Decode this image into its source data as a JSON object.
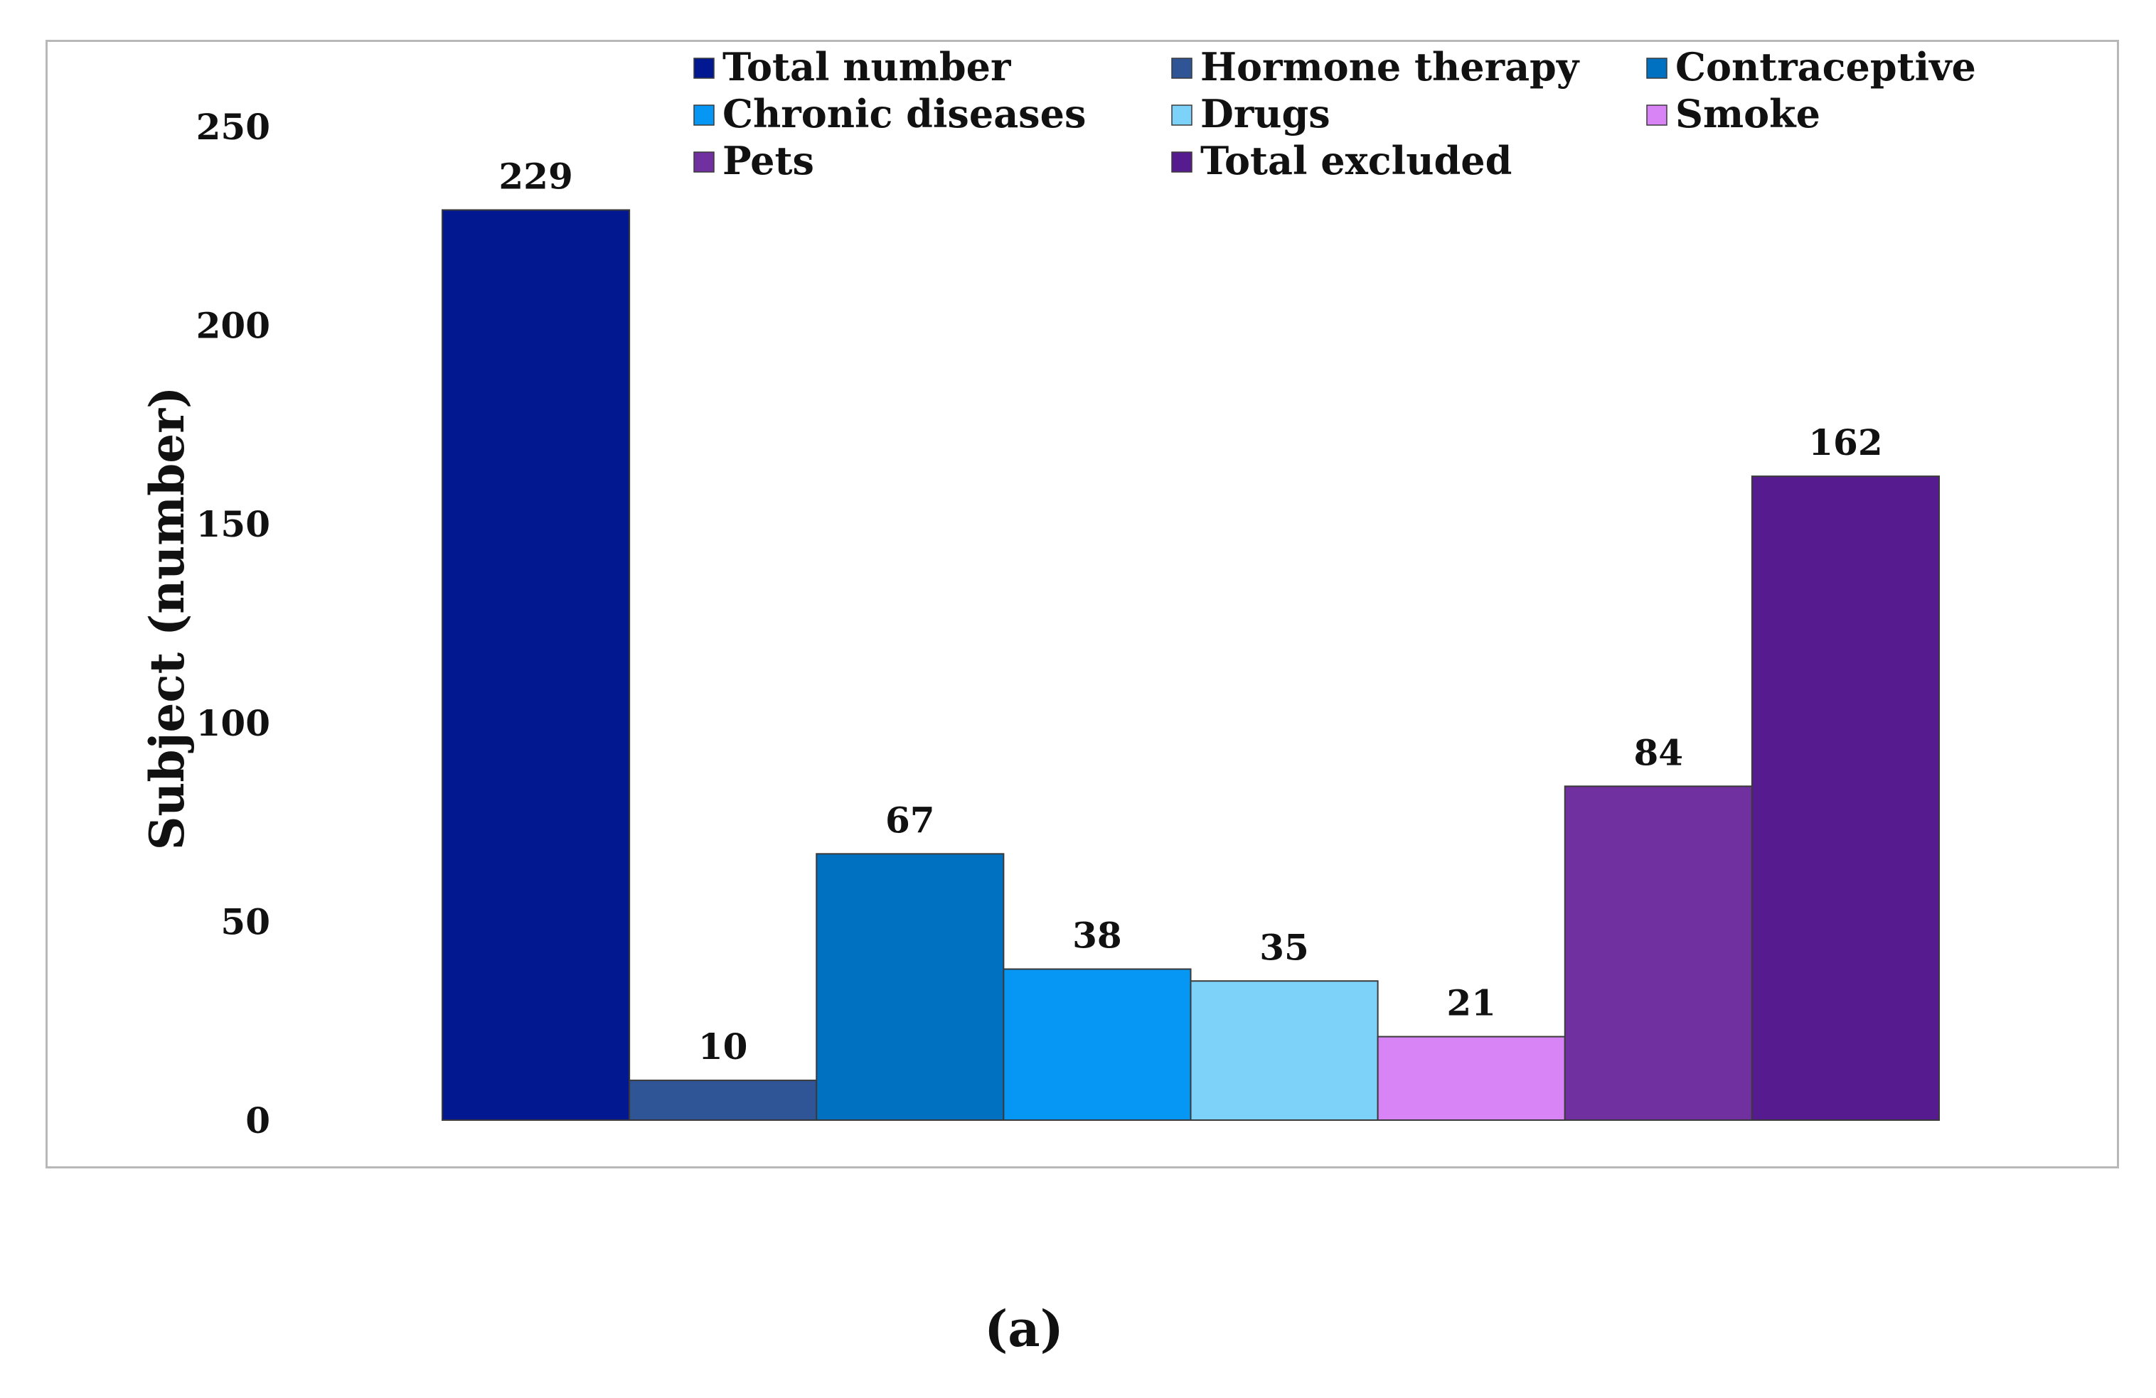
{
  "chart_data": {
    "type": "bar",
    "title": "",
    "xlabel": "",
    "ylabel": "Subject (number)",
    "ylim": [
      0,
      250
    ],
    "yticks": [
      0,
      50,
      100,
      150,
      200,
      250
    ],
    "grid": false,
    "legend_position": "top",
    "categories": [
      "Total number",
      "Hormone therapy",
      "Contraceptive",
      "Chronic diseases",
      "Drugs",
      "Smoke",
      "Pets",
      "Total excluded"
    ],
    "values": [
      229,
      10,
      67,
      38,
      35,
      21,
      84,
      162
    ],
    "data_labels": [
      "229",
      "10",
      "67",
      "38",
      "35",
      "21",
      "84",
      "162"
    ],
    "colors": [
      "#021890",
      "#2f5597",
      "#0070c0",
      "#0696f4",
      "#7dd2fa",
      "#d884f6",
      "#7030a0",
      "#561b8f"
    ]
  },
  "caption": "(a)"
}
